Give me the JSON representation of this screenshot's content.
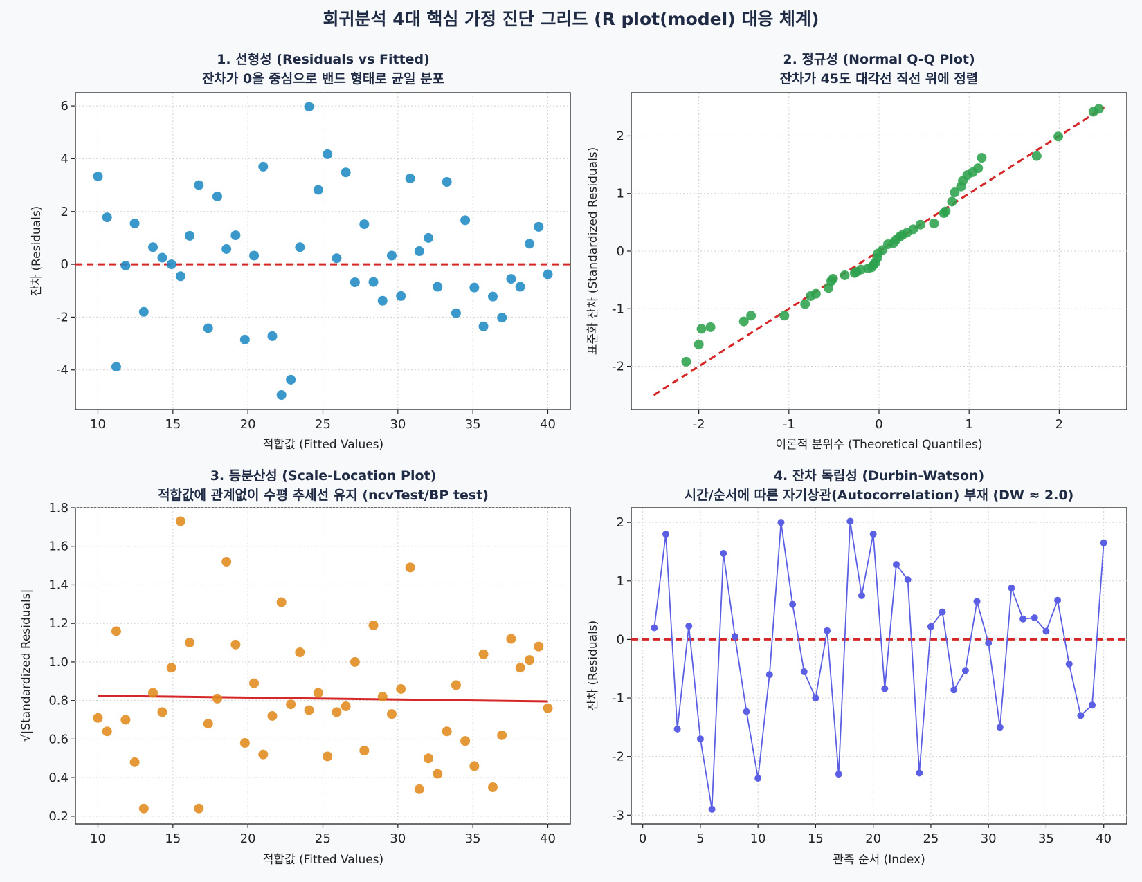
{
  "figure": {
    "title": "회귀분석 4대 핵심 가정 진단 그리드 (R plot(model) 대응 체계)"
  },
  "chart_data": [
    {
      "id": "p1",
      "type": "scatter",
      "title": "1. 선형성 (Residuals vs Fitted)",
      "subtitle": "잔차가 0을 중심으로 밴드 형태로 균일 분포",
      "xlabel": "적합값 (Fitted Values)",
      "ylabel": "잔차 (Residuals)",
      "xlim": [
        8.5,
        41.5
      ],
      "ylim": [
        -5.5,
        6.5
      ],
      "xticks": [
        10,
        15,
        20,
        25,
        30,
        35,
        40
      ],
      "yticks": [
        -4,
        -2,
        0,
        2,
        4,
        6
      ],
      "grid": true,
      "color": "#1f8ac4",
      "reference_line": {
        "y": 0,
        "color": "#d62728",
        "style": "dashed"
      },
      "x": [
        10.0,
        10.61,
        11.22,
        11.84,
        12.45,
        13.06,
        13.67,
        14.29,
        14.9,
        15.51,
        16.12,
        16.73,
        17.35,
        17.96,
        18.57,
        19.18,
        19.8,
        20.41,
        21.02,
        21.63,
        22.24,
        22.86,
        23.47,
        24.08,
        24.69,
        25.31,
        25.92,
        26.53,
        27.14,
        27.76,
        28.37,
        28.98,
        29.59,
        30.2,
        30.82,
        31.43,
        32.04,
        32.65,
        33.27,
        33.88,
        34.49,
        35.1,
        35.71,
        36.33,
        36.94,
        37.55,
        38.16,
        38.78,
        39.39,
        40.0
      ],
      "y": [
        3.33,
        1.78,
        -3.88,
        -0.05,
        1.55,
        -1.8,
        0.65,
        0.25,
        0.0,
        -0.45,
        1.08,
        3.0,
        -2.42,
        2.57,
        0.58,
        1.1,
        -2.85,
        0.33,
        3.7,
        -2.72,
        -4.95,
        -4.37,
        0.65,
        5.97,
        2.82,
        4.17,
        0.23,
        3.48,
        -0.68,
        1.52,
        -0.67,
        -1.38,
        0.33,
        -1.2,
        3.25,
        0.5,
        1.0,
        -0.85,
        3.12,
        -1.85,
        1.67,
        -0.88,
        -2.35,
        -1.22,
        -2.02,
        -0.55,
        -0.85,
        0.78,
        1.42,
        -0.38
      ]
    },
    {
      "id": "p2",
      "type": "scatter",
      "title": "2. 정규성 (Normal Q-Q Plot)",
      "subtitle": "잔차가 45도 대각선 직선 위에 정렬",
      "xlabel": "이론적 분위수 (Theoretical Quantiles)",
      "ylabel": "표준화 잔차 (Standardized Residuals)",
      "xlim": [
        -2.75,
        2.75
      ],
      "ylim": [
        -2.75,
        2.75
      ],
      "xticks": [
        -2,
        -1,
        0,
        1,
        2
      ],
      "yticks": [
        -2,
        -1,
        0,
        1,
        2
      ],
      "grid": true,
      "color": "#2ca24d",
      "reference_line": {
        "x": [
          -2.5,
          2.5
        ],
        "y": [
          -2.5,
          2.5
        ],
        "color": "#d62728",
        "style": "dashed"
      },
      "x": [
        -2.14,
        -2.0,
        -1.97,
        -1.87,
        -1.5,
        -1.42,
        -1.05,
        -0.82,
        -0.76,
        -0.7,
        -0.56,
        -0.53,
        -0.51,
        -0.38,
        -0.27,
        -0.25,
        -0.2,
        -0.12,
        -0.08,
        -0.06,
        -0.04,
        -0.02,
        -0.01,
        0.04,
        0.1,
        0.16,
        0.19,
        0.23,
        0.26,
        0.31,
        0.38,
        0.46,
        0.61,
        0.72,
        0.74,
        0.81,
        0.84,
        0.91,
        0.93,
        0.98,
        1.04,
        1.1,
        1.14,
        1.75,
        1.99,
        2.38,
        2.44
      ],
      "y": [
        -1.92,
        -1.62,
        -1.35,
        -1.32,
        -1.22,
        -1.12,
        -1.12,
        -0.92,
        -0.78,
        -0.74,
        -0.64,
        -0.52,
        -0.48,
        -0.42,
        -0.38,
        -0.36,
        -0.32,
        -0.3,
        -0.28,
        -0.24,
        -0.2,
        -0.12,
        -0.04,
        0.02,
        0.12,
        0.14,
        0.2,
        0.25,
        0.28,
        0.32,
        0.38,
        0.46,
        0.48,
        0.66,
        0.69,
        0.86,
        1.02,
        1.12,
        1.22,
        1.32,
        1.37,
        1.44,
        1.62,
        1.65,
        1.99,
        2.42,
        2.47
      ]
    },
    {
      "id": "p3",
      "type": "scatter",
      "title": "3. 등분산성 (Scale-Location Plot)",
      "subtitle": "적합값에 관계없이 수평 추세선 유지 (ncvTest/BP test)",
      "xlabel": "적합값 (Fitted Values)",
      "ylabel": "√|Standardized Residuals|",
      "xlim": [
        8.5,
        41.5
      ],
      "ylim": [
        0.16,
        1.8
      ],
      "xticks": [
        10,
        15,
        20,
        25,
        30,
        35,
        40
      ],
      "yticks": [
        0.2,
        0.4,
        0.6,
        0.8,
        1.0,
        1.2,
        1.4,
        1.6,
        1.8
      ],
      "ytick_labels": [
        "0.2",
        "0.4",
        "0.6",
        "0.8",
        "1.0",
        "1.2",
        "1.4",
        "1.6",
        "1.8"
      ],
      "grid": true,
      "color": "#e08a1c",
      "trend_line": {
        "x": [
          10,
          40
        ],
        "y": [
          0.825,
          0.795
        ],
        "color": "#d62728",
        "style": "solid"
      },
      "x": [
        10.0,
        10.61,
        11.22,
        11.84,
        12.45,
        13.06,
        13.67,
        14.29,
        14.9,
        15.51,
        16.12,
        16.73,
        17.35,
        17.96,
        18.57,
        19.18,
        19.8,
        20.41,
        21.02,
        21.63,
        22.24,
        22.86,
        23.47,
        24.08,
        24.69,
        25.31,
        25.92,
        26.53,
        27.14,
        27.76,
        28.37,
        28.98,
        29.59,
        30.2,
        30.82,
        31.43,
        32.04,
        32.65,
        33.27,
        33.88,
        34.49,
        35.1,
        35.71,
        36.33,
        36.94,
        37.55,
        38.16,
        38.78,
        39.39,
        40.0
      ],
      "y": [
        0.71,
        0.64,
        1.16,
        0.7,
        0.48,
        0.24,
        0.84,
        0.74,
        0.97,
        1.73,
        1.1,
        0.24,
        0.68,
        0.81,
        1.52,
        1.09,
        0.58,
        0.89,
        0.52,
        0.72,
        1.31,
        0.78,
        1.05,
        0.75,
        0.84,
        0.51,
        0.74,
        0.77,
        1.0,
        0.54,
        1.19,
        0.82,
        0.73,
        0.86,
        1.49,
        0.34,
        0.5,
        0.42,
        0.64,
        0.88,
        0.59,
        0.46,
        1.04,
        0.35,
        0.62,
        1.12,
        0.97,
        1.01,
        1.08,
        0.76
      ]
    },
    {
      "id": "p4",
      "type": "line",
      "title": "4. 잔차 독립성 (Durbin-Watson)",
      "subtitle": "시간/순서에 따른 자기상관(Autocorrelation) 부재 (DW ≈ 2.0)",
      "xlabel": "관측 순서 (Index)",
      "ylabel": "잔차 (Residuals)",
      "xlim": [
        -1,
        42
      ],
      "ylim": [
        -3.15,
        2.25
      ],
      "xticks": [
        0,
        5,
        10,
        15,
        20,
        25,
        30,
        35,
        40
      ],
      "yticks": [
        -3,
        -2,
        -1,
        0,
        1,
        2
      ],
      "grid": true,
      "color": "#5b5fe3",
      "reference_line": {
        "y": 0,
        "color": "#d62728",
        "style": "dashed"
      },
      "x": [
        1,
        2,
        3,
        4,
        5,
        6,
        7,
        8,
        9,
        10,
        11,
        12,
        13,
        14,
        15,
        16,
        17,
        18,
        19,
        20,
        21,
        22,
        23,
        24,
        25,
        26,
        27,
        28,
        29,
        30,
        31,
        32,
        33,
        34,
        35,
        36,
        37,
        38,
        39,
        40
      ],
      "y": [
        0.2,
        1.8,
        -1.53,
        0.23,
        -1.7,
        -2.9,
        1.47,
        0.05,
        -1.23,
        -2.37,
        -0.6,
        2.0,
        0.6,
        -0.55,
        -1.0,
        0.15,
        -2.3,
        2.02,
        0.75,
        1.8,
        -0.84,
        1.28,
        1.02,
        -2.28,
        0.22,
        0.47,
        -0.86,
        -0.53,
        0.65,
        -0.06,
        -1.5,
        0.88,
        0.35,
        0.37,
        0.14,
        0.67,
        -0.42,
        -1.3,
        -1.12,
        1.65
      ]
    }
  ]
}
